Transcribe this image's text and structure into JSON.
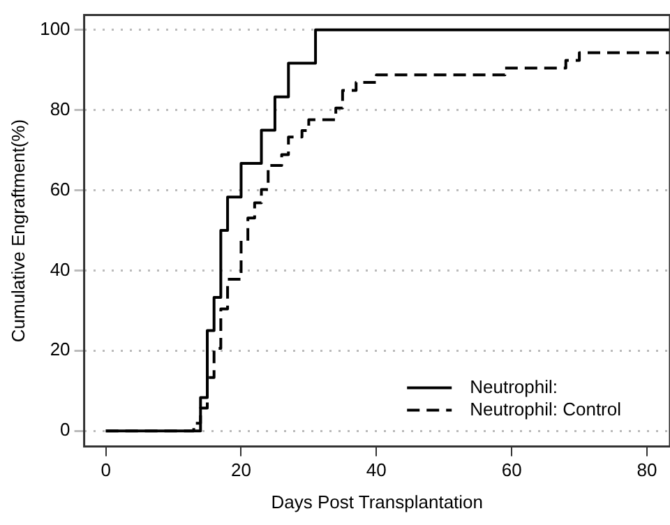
{
  "chart_data": {
    "type": "step",
    "xlabel": "Days Post Transplantation",
    "ylabel": "Cumulative Engraftment(%)",
    "xlim": [
      -3.2,
      83.4
    ],
    "ylim": [
      -3.9,
      103.7
    ],
    "xticks": [
      0,
      20,
      40,
      60,
      80
    ],
    "yticks": [
      0,
      20,
      40,
      60,
      80,
      100
    ],
    "grid": "y",
    "legend": "bottom right",
    "marker": "none",
    "series": [
      {
        "name": "Neutrophil:",
        "color": "#000000",
        "line_style": "solid",
        "x": [
          0,
          14,
          15,
          16,
          17,
          18,
          20,
          23,
          25,
          27,
          31,
          83.4
        ],
        "values": [
          0,
          8.3,
          25,
          33.3,
          50,
          58.3,
          66.7,
          75,
          83.3,
          91.7,
          100,
          100
        ]
      },
      {
        "name": "Neutrophil: Control",
        "color": "#000000",
        "line_style": "dashed",
        "x": [
          0,
          13,
          14,
          15,
          16,
          17,
          18,
          20,
          21,
          22,
          23,
          24,
          26,
          27,
          29,
          30,
          34,
          35,
          37,
          40,
          59,
          68,
          70,
          83.4
        ],
        "values": [
          0,
          1.9,
          5.7,
          13.3,
          20.6,
          30.4,
          37.8,
          47.4,
          53.1,
          56.9,
          60.2,
          66.2,
          68.9,
          73.3,
          74.9,
          77.6,
          80.5,
          84.9,
          86.9,
          88.8,
          90.5,
          92.4,
          94.3,
          94.3
        ]
      }
    ]
  }
}
